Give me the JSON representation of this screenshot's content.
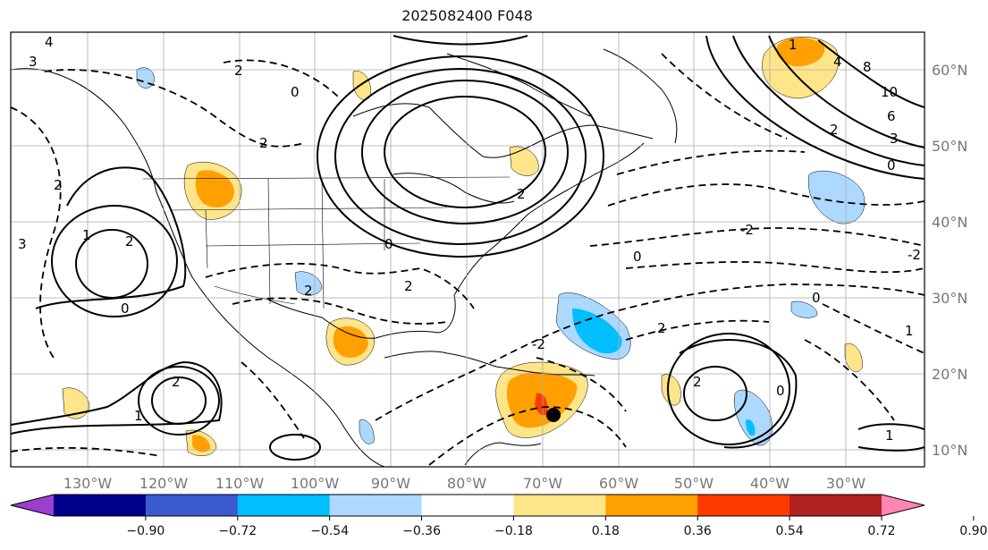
{
  "title": "2025082400 F048",
  "longitude_labels": [
    "130°W",
    "120°W",
    "110°W",
    "100°W",
    "90°W",
    "80°W",
    "70°W",
    "60°W",
    "50°W",
    "40°W",
    "30°W"
  ],
  "latitude_labels": [
    "60°N",
    "50°N",
    "40°N",
    "30°N",
    "20°N",
    "10°N"
  ],
  "colorbar": {
    "colors": [
      "#9b3fd0",
      "#00008b",
      "#3a5bd0",
      "#00bfff",
      "#add8ff",
      "#ffffff",
      "#ffe58a",
      "#ffa000",
      "#ff3a00",
      "#b22222",
      "#ff85b4"
    ],
    "tick_labels": [
      "−0.90",
      "−0.72",
      "−0.54",
      "−0.36",
      "−0.18",
      "0.18",
      "0.36",
      "0.54",
      "0.72",
      "0.90"
    ]
  },
  "contour_labels": [
    "4",
    "3",
    "2",
    "0",
    "2",
    "1",
    "4",
    "10",
    "8",
    "6",
    "3",
    "2",
    "0",
    "2",
    "2",
    "1",
    "3",
    "2",
    "1",
    "0",
    "2",
    "2",
    "-2",
    "0",
    "0",
    "-2",
    "2",
    "2",
    "2",
    "1",
    "1",
    "-2",
    "0",
    "0"
  ],
  "marker": "storm-position-marker"
}
